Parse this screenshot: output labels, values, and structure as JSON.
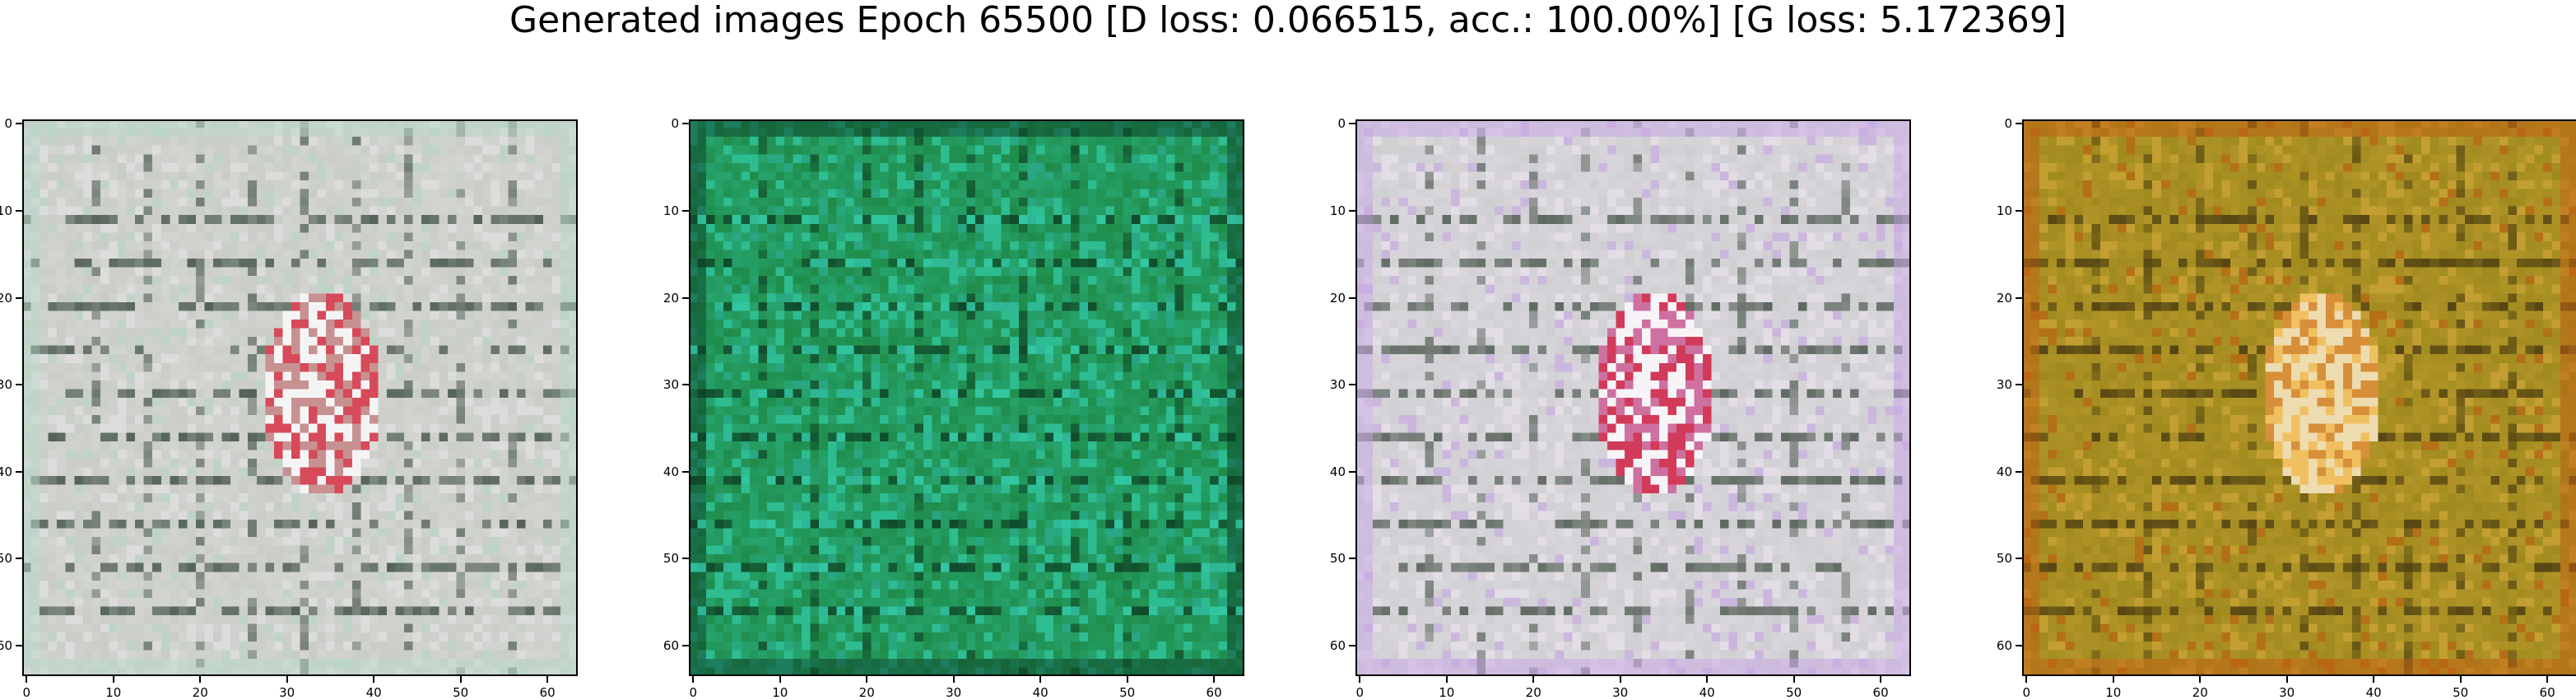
{
  "title": "Generated images Epoch 65500 [D loss: 0.066515, acc.: 100.00%] [G loss: 5.172369]",
  "axes": {
    "x_ticks": [
      "0",
      "10",
      "20",
      "30",
      "40",
      "50",
      "60"
    ],
    "y_ticks": [
      "0",
      "10",
      "20",
      "30",
      "40",
      "50",
      "60"
    ],
    "pixel_extent": [
      0,
      64
    ]
  },
  "panels": [
    {
      "id": "image-1",
      "description": "noisy greyish-white generated image with central pink/red blob",
      "colors": {
        "base": "#c9cdc6",
        "light": "#e6e3e6",
        "dark": "#3f4f44",
        "accent": "#d64a5a",
        "tint": "#b8d8c8"
      }
    },
    {
      "id": "image-2",
      "description": "green generated image with horizontal cyan streaks",
      "colors": {
        "base": "#1f8c4a",
        "light": "#35d0b0",
        "dark": "#0d3f26",
        "accent": "#1aa07a",
        "tint": "#2fb8a8"
      }
    },
    {
      "id": "image-3",
      "description": "pale grey-lavender generated image with central pink/blue blob",
      "colors": {
        "base": "#cfcfd2",
        "light": "#ebe3ee",
        "dark": "#4a564c",
        "accent": "#d23a5a",
        "tint": "#c9a6e6"
      }
    },
    {
      "id": "image-4",
      "description": "olive/orange generated image with central white/orange blob",
      "colors": {
        "base": "#a08a1e",
        "light": "#d2a83a",
        "dark": "#4a3a12",
        "accent": "#f0c060",
        "tint": "#c05e12"
      }
    }
  ]
}
